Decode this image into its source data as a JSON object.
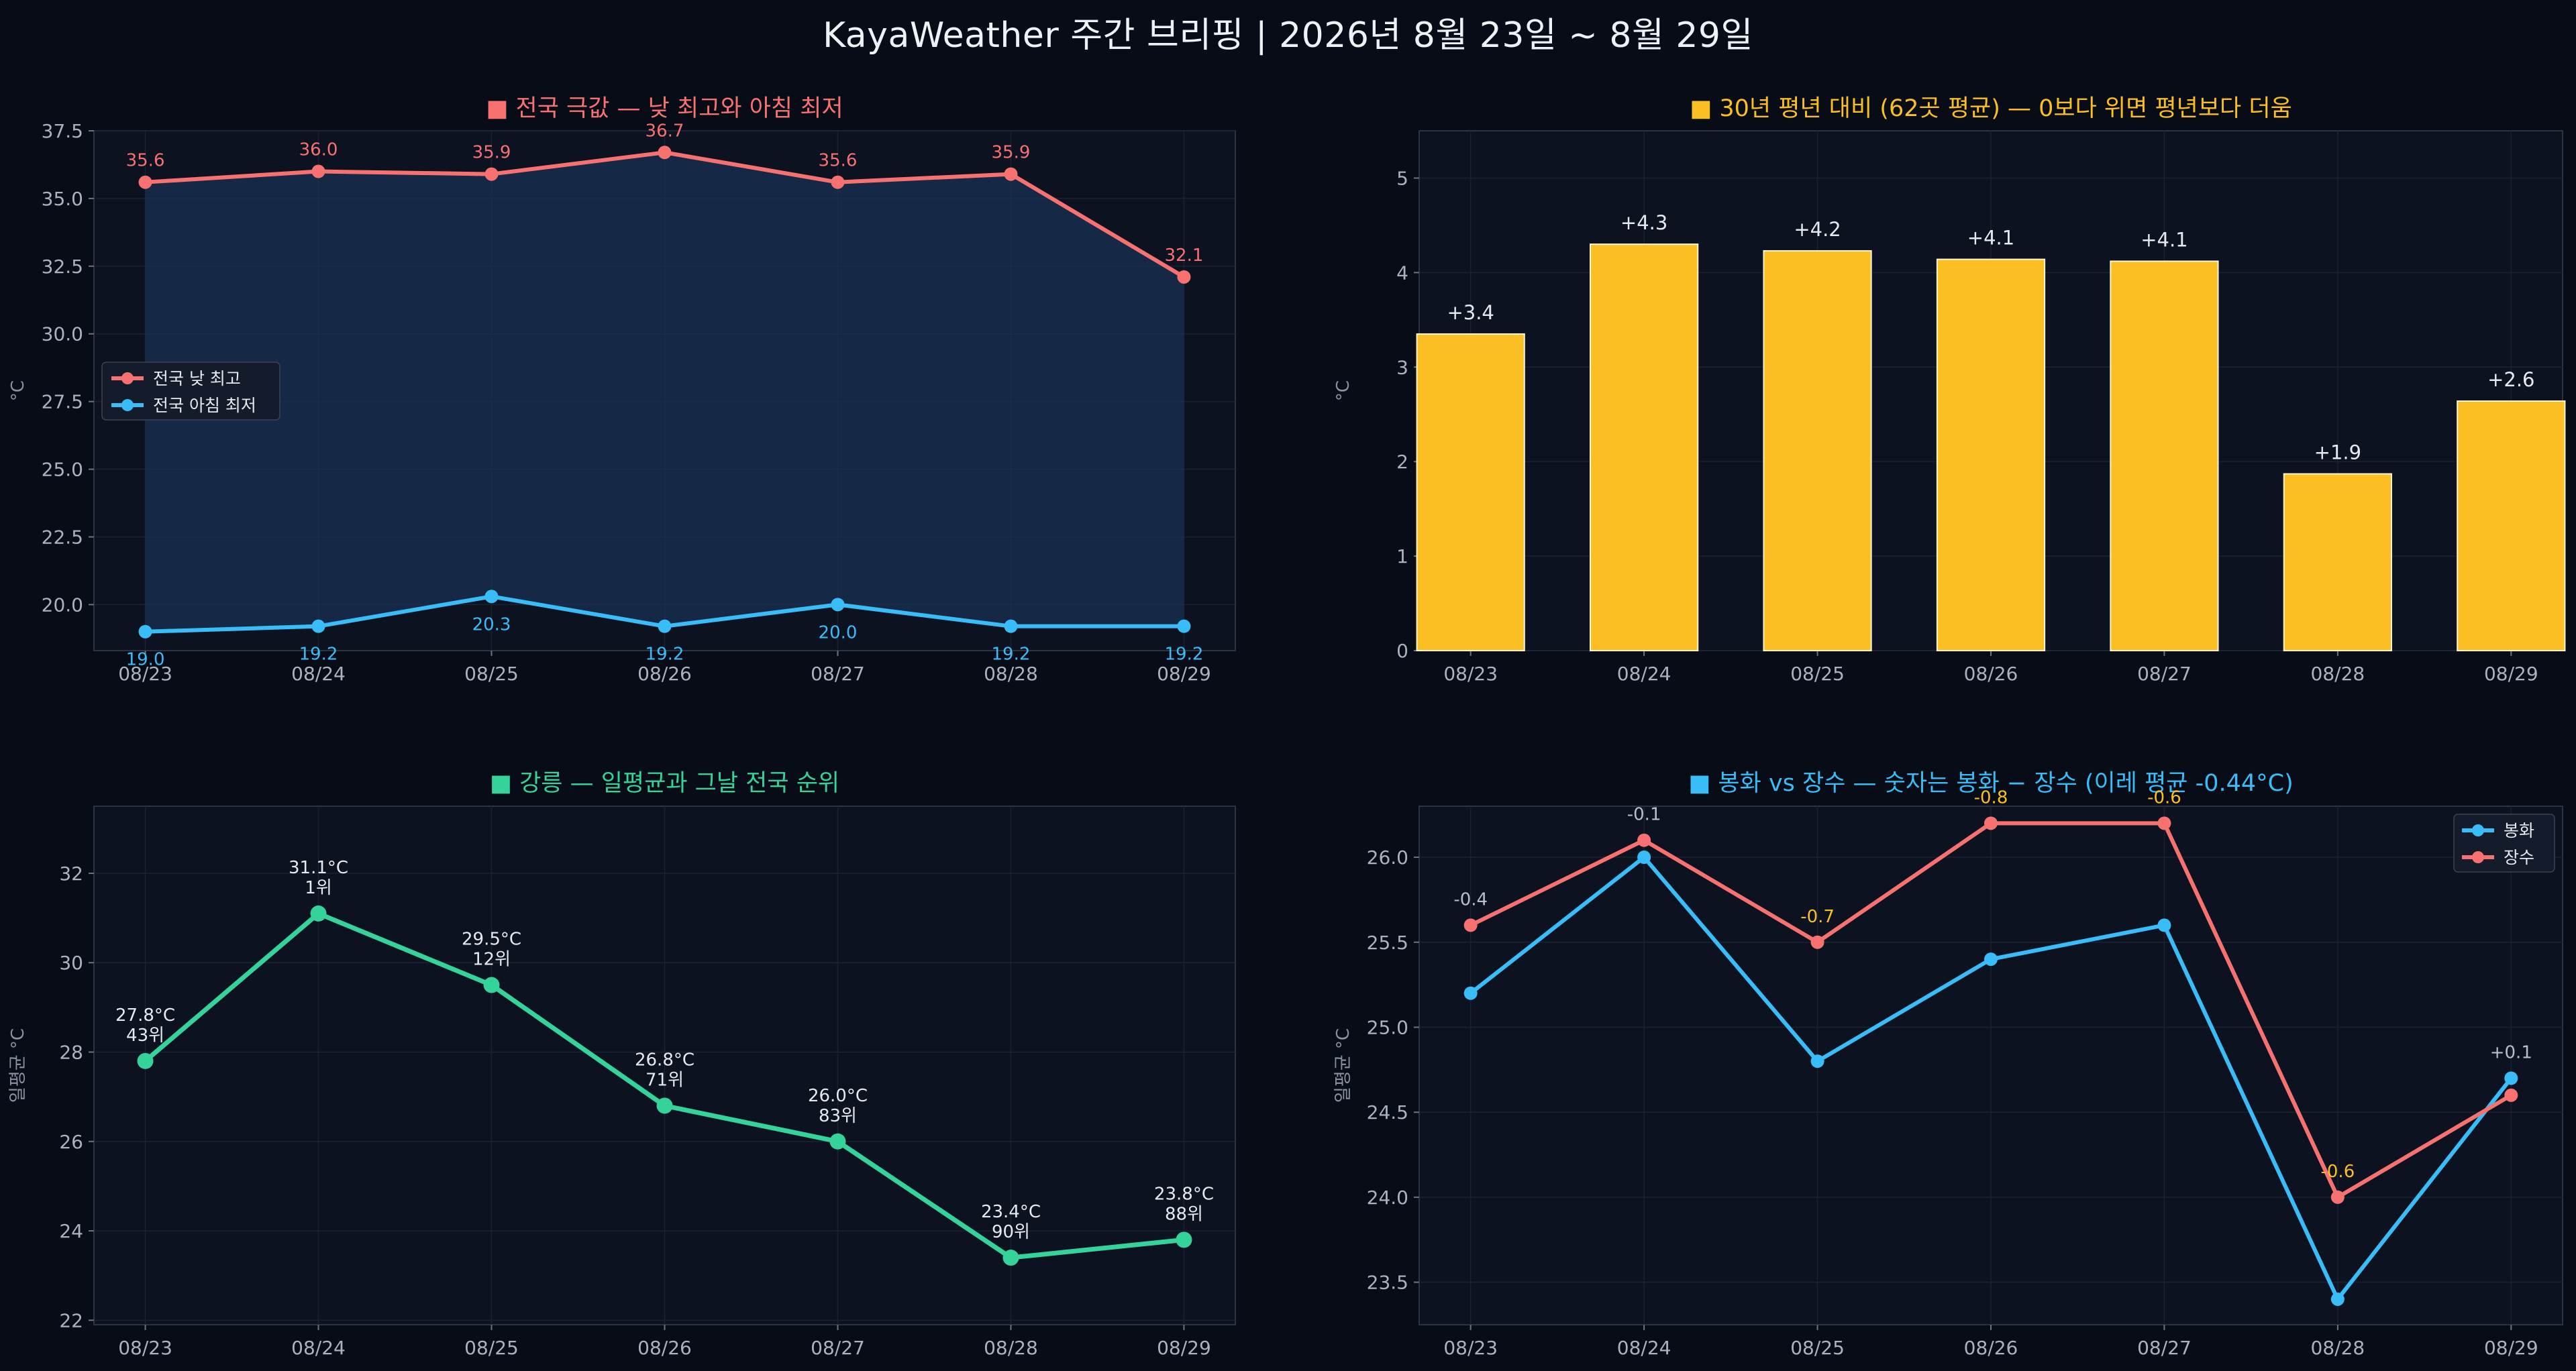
{
  "suptitle": "KayaWeather 주간 브리핑 | 2026년 8월 23일 ~ 8월 29일",
  "chart_data": [
    {
      "type": "line",
      "title": "■ 전국 극값 — 낮 최고와 아침 최저",
      "title_color": "#f87171",
      "ylabel": "°C",
      "categories": [
        "08/23",
        "08/24",
        "08/25",
        "08/26",
        "08/27",
        "08/28",
        "08/29"
      ],
      "ylim": [
        18.3,
        37.5
      ],
      "yticks": [
        "20.0",
        "22.5",
        "25.0",
        "27.5",
        "30.0",
        "32.5",
        "35.0",
        "37.5"
      ],
      "legend": "center-left",
      "series": [
        {
          "name": "전국 낮 최고",
          "color": "#f87171",
          "values": [
            35.6,
            36.0,
            35.9,
            36.7,
            35.6,
            35.9,
            32.1
          ],
          "labels": [
            "35.6",
            "36.0",
            "35.9",
            "36.7",
            "35.6",
            "35.9",
            "32.1"
          ]
        },
        {
          "name": "전국 아침 최저",
          "color": "#38bdf8",
          "values": [
            19.0,
            19.2,
            20.3,
            19.2,
            20.0,
            19.2,
            19.2
          ],
          "labels": [
            "19.0",
            "19.2",
            "20.3",
            "19.2",
            "20.0",
            "19.2",
            "19.2"
          ]
        }
      ]
    },
    {
      "type": "bar",
      "title": "■ 30년 평년 대비 (62곳 평균) — 0보다 위면 평년보다 더움",
      "title_color": "#fbbf24",
      "ylabel": "°C",
      "categories": [
        "08/23",
        "08/24",
        "08/25",
        "08/26",
        "08/27",
        "08/28",
        "08/29"
      ],
      "values": [
        3.35,
        4.3,
        4.23,
        4.14,
        4.12,
        1.87,
        2.64
      ],
      "labels": [
        "+3.4",
        "+4.3",
        "+4.2",
        "+4.1",
        "+4.1",
        "+1.9",
        "+2.6"
      ],
      "ylim": [
        0,
        5.5
      ],
      "yticks": [
        "0",
        "1",
        "2",
        "3",
        "4",
        "5"
      ],
      "color": "#fbbf24"
    },
    {
      "type": "line",
      "title": "■ 강릉 — 일평균과 그날 전국 순위",
      "title_color": "#34d399",
      "ylabel": "일평균 °C",
      "categories": [
        "08/23",
        "08/24",
        "08/25",
        "08/26",
        "08/27",
        "08/28",
        "08/29"
      ],
      "ylim": [
        21.9,
        33.5
      ],
      "yticks": [
        "22",
        "24",
        "26",
        "28",
        "30",
        "32"
      ],
      "series": [
        {
          "color": "#34d399",
          "values": [
            27.8,
            31.1,
            29.5,
            26.8,
            26.0,
            23.4,
            23.8
          ],
          "labels": [
            "27.8°C",
            "31.1°C",
            "29.5°C",
            "26.8°C",
            "26.0°C",
            "23.4°C",
            "23.8°C"
          ],
          "ranks": [
            "43위",
            "1위",
            "12위",
            "71위",
            "83위",
            "90위",
            "88위"
          ]
        }
      ]
    },
    {
      "type": "line",
      "title": "■ 봉화 vs 장수 — 숫자는 봉화 − 장수 (이레 평균 -0.44°C)",
      "title_color": "#38bdf8",
      "ylabel": "일평균 °C",
      "categories": [
        "08/23",
        "08/24",
        "08/25",
        "08/26",
        "08/27",
        "08/28",
        "08/29"
      ],
      "ylim": [
        23.25,
        26.3
      ],
      "yticks": [
        "23.5",
        "24.0",
        "24.5",
        "25.0",
        "25.5",
        "26.0"
      ],
      "legend": "top-right",
      "series": [
        {
          "name": "봉화",
          "color": "#38bdf8",
          "values": [
            25.2,
            26.0,
            24.8,
            25.4,
            25.6,
            23.4,
            24.7
          ]
        },
        {
          "name": "장수",
          "color": "#f87171",
          "values": [
            25.6,
            26.1,
            25.5,
            26.2,
            26.2,
            24.0,
            24.6
          ]
        }
      ],
      "diffs": [
        "-0.4",
        "-0.1",
        "-0.7",
        "-0.8",
        "-0.6",
        "-0.6",
        "+0.1"
      ],
      "diff_colors": [
        "#b8bfcc",
        "#b8bfcc",
        "#fbbf24",
        "#fbbf24",
        "#fbbf24",
        "#fbbf24",
        "#b8bfcc"
      ]
    }
  ]
}
